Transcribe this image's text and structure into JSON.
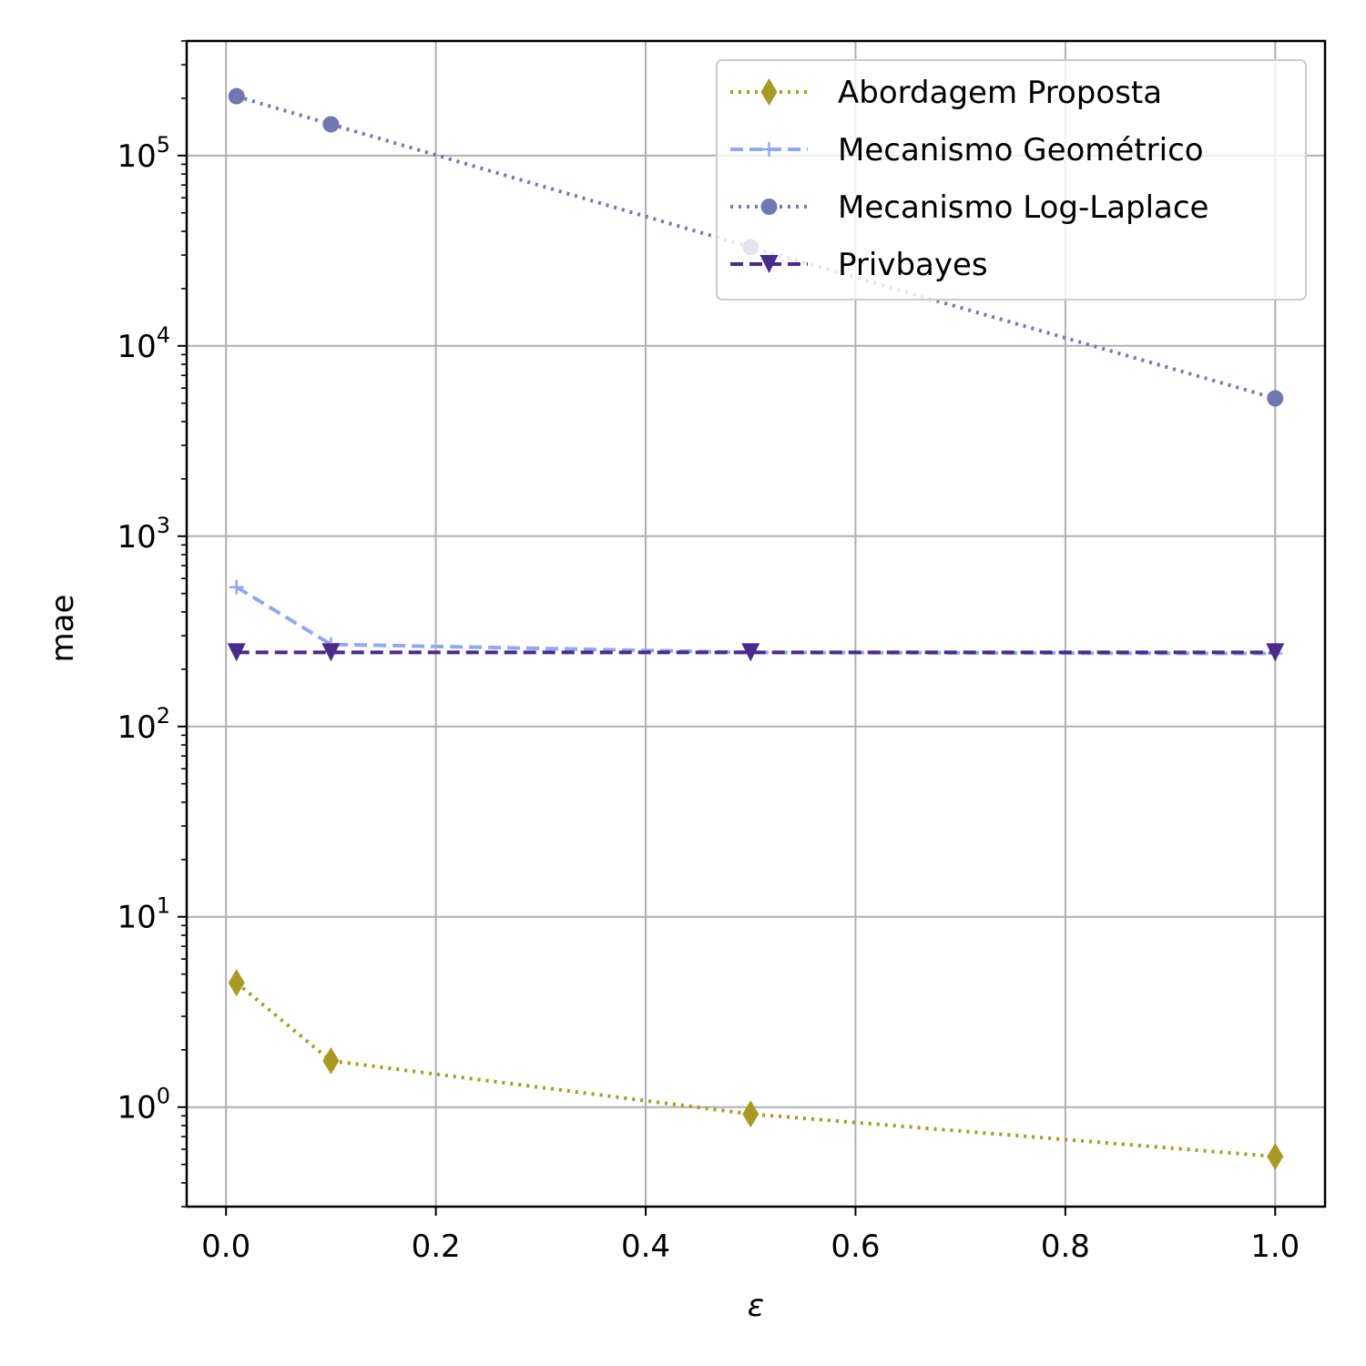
{
  "chart_data": {
    "type": "line",
    "xlabel": "ε",
    "ylabel": "mae",
    "yscale": "log",
    "xlim": [
      -0.0375,
      1.0475
    ],
    "ylim": [
      0.3,
      400000
    ],
    "x_ticks": [
      "0.0",
      "0.2",
      "0.4",
      "0.6",
      "0.8",
      "1.0"
    ],
    "y_ticks": [
      {
        "base": "10",
        "exp": "0"
      },
      {
        "base": "10",
        "exp": "1"
      },
      {
        "base": "10",
        "exp": "2"
      },
      {
        "base": "10",
        "exp": "3"
      },
      {
        "base": "10",
        "exp": "4"
      },
      {
        "base": "10",
        "exp": "5"
      }
    ],
    "grid": true,
    "legend_position": "top-right",
    "x": [
      0.01,
      0.1,
      0.5,
      1.0
    ],
    "series": [
      {
        "name": "Abordagem Proposta",
        "values": [
          4.5,
          1.75,
          0.92,
          0.55
        ],
        "color": "#a89a25",
        "linestyle": "dotted",
        "marker": "thin-diamond"
      },
      {
        "name": "Mecanismo Geométrico",
        "values": [
          540,
          270,
          245,
          242
        ],
        "color": "#91a8f2",
        "linestyle": "dashed",
        "marker": "plus"
      },
      {
        "name": "Mecanismo Log-Laplace",
        "values": [
          205000,
          146000,
          33000,
          5300
        ],
        "color": "#7178b0",
        "linestyle": "dotted",
        "marker": "circle"
      },
      {
        "name": "Privbayes",
        "values": [
          245,
          245,
          245,
          245
        ],
        "color": "#4a2b8c",
        "linestyle": "dashed",
        "marker": "triangle-down"
      }
    ]
  }
}
